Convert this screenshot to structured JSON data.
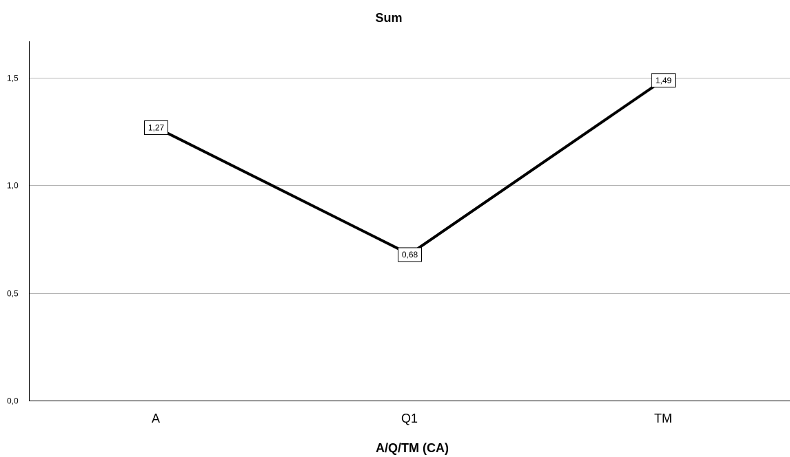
{
  "chart_data": {
    "type": "line",
    "title": "Sum",
    "xlabel": "A/Q/TM (CA)",
    "ylabel": "",
    "categories": [
      "A",
      "Q1",
      "TM"
    ],
    "series": [
      {
        "values": [
          1.27,
          0.68,
          1.49
        ],
        "data_labels": [
          "1,27",
          "0,68",
          "1,49"
        ]
      }
    ],
    "ylim": [
      0,
      1.67
    ],
    "y_ticks": [
      0,
      0.5,
      1.0,
      1.5
    ],
    "y_tick_labels": [
      "0,0",
      "0,5",
      "1,0",
      "1,5"
    ],
    "grid": true,
    "legend": "none",
    "colors": {
      "line": "#000000",
      "grid": "#b4b4b4",
      "axis": "#000000",
      "background": "#ffffff"
    }
  }
}
